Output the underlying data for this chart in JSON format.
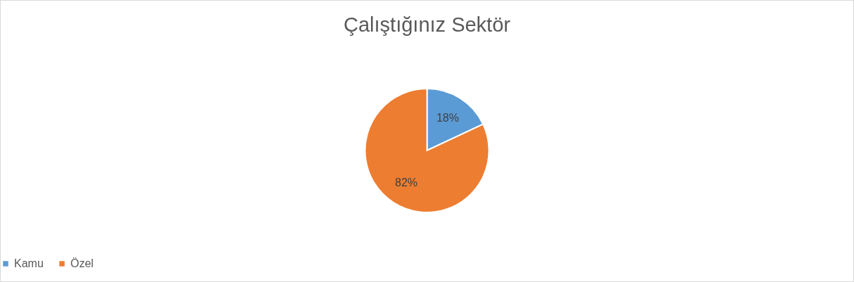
{
  "chart_data": {
    "type": "pie",
    "title": "Çalıştığınız Sektör",
    "categories": [
      "Kamu",
      "Özel"
    ],
    "values": [
      18,
      82
    ],
    "colors": [
      "#5b9bd5",
      "#ed7d31"
    ],
    "value_labels": [
      "18%",
      "82%"
    ],
    "legend": "bottom"
  }
}
